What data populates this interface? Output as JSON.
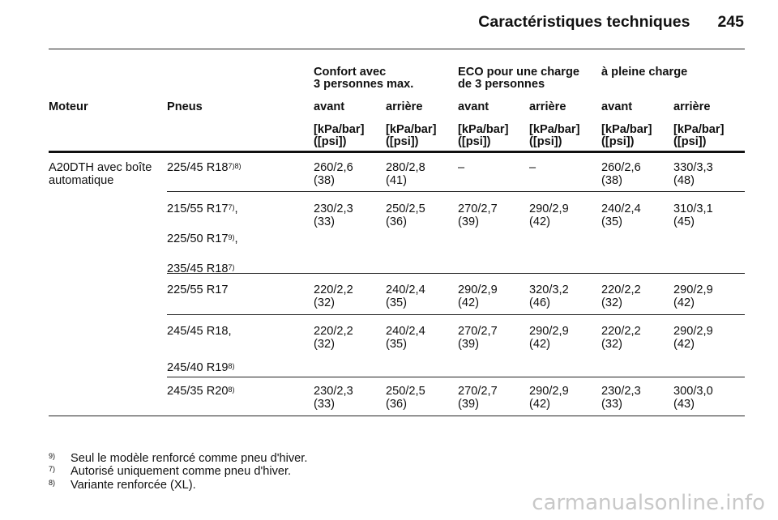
{
  "header": {
    "title": "Caractéristiques techniques",
    "page": "245"
  },
  "table": {
    "groups": [
      {
        "l1": "Confort avec",
        "l2": "3 personnes max."
      },
      {
        "l1": "ECO pour une charge",
        "l2": "de 3 personnes"
      },
      {
        "l1": "à pleine charge",
        "l2": ""
      }
    ],
    "col_motor": "Moteur",
    "col_tires": "Pneus",
    "sub": [
      "avant",
      "arrière",
      "avant",
      "arrière",
      "avant",
      "arrière"
    ],
    "unit_l1": "[kPa/bar]",
    "unit_l2": "([psi])",
    "motor_l1": "A20DTH avec boîte",
    "motor_l2": "automatique",
    "rows": [
      {
        "tires": [
          {
            "name": "225/45 R18",
            "sup": "7)8)"
          }
        ],
        "vals": [
          [
            "260/2,6",
            "(38)"
          ],
          [
            "280/2,8",
            "(41)"
          ],
          [
            "–",
            ""
          ],
          [
            "–",
            ""
          ],
          [
            "260/2,6",
            "(38)"
          ],
          [
            "330/3,3",
            "(48)"
          ]
        ]
      },
      {
        "tires": [
          {
            "name": "215/55 R17",
            "sup": "7)",
            "suffix": ","
          },
          {
            "name": "225/50 R17",
            "sup": "9)",
            "suffix": ","
          },
          {
            "name": "235/45 R18",
            "sup": "7)"
          }
        ],
        "vals": [
          [
            "230/2,3",
            "(33)"
          ],
          [
            "250/2,5",
            "(36)"
          ],
          [
            "270/2,7",
            "(39)"
          ],
          [
            "290/2,9",
            "(42)"
          ],
          [
            "240/2,4",
            "(35)"
          ],
          [
            "310/3,1",
            "(45)"
          ]
        ]
      },
      {
        "tires": [
          {
            "name": "225/55 R17",
            "sup": ""
          }
        ],
        "vals": [
          [
            "220/2,2",
            "(32)"
          ],
          [
            "240/2,4",
            "(35)"
          ],
          [
            "290/2,9",
            "(42)"
          ],
          [
            "320/3,2",
            "(46)"
          ],
          [
            "220/2,2",
            "(32)"
          ],
          [
            "290/2,9",
            "(42)"
          ]
        ]
      },
      {
        "tires": [
          {
            "name": "245/45 R18,",
            "sup": ""
          },
          {
            "name": "245/40 R19",
            "sup": "8)"
          }
        ],
        "vals": [
          [
            "220/2,2",
            "(32)"
          ],
          [
            "240/2,4",
            "(35)"
          ],
          [
            "270/2,7",
            "(39)"
          ],
          [
            "290/2,9",
            "(42)"
          ],
          [
            "220/2,2",
            "(32)"
          ],
          [
            "290/2,9",
            "(42)"
          ]
        ]
      },
      {
        "tires": [
          {
            "name": "245/35 R20",
            "sup": "8)"
          }
        ],
        "vals": [
          [
            "230/2,3",
            "(33)"
          ],
          [
            "250/2,5",
            "(36)"
          ],
          [
            "270/2,7",
            "(39)"
          ],
          [
            "290/2,9",
            "(42)"
          ],
          [
            "230/2,3",
            "(33)"
          ],
          [
            "300/3,0",
            "(43)"
          ]
        ]
      }
    ]
  },
  "footnotes": [
    {
      "mark": "9)",
      "text": "Seul le modèle renforcé comme pneu d'hiver."
    },
    {
      "mark": "7)",
      "text": "Autorisé uniquement comme pneu d'hiver."
    },
    {
      "mark": "8)",
      "text": "Variante renforcée (XL)."
    }
  ],
  "watermark": "carmanualsonline.info"
}
